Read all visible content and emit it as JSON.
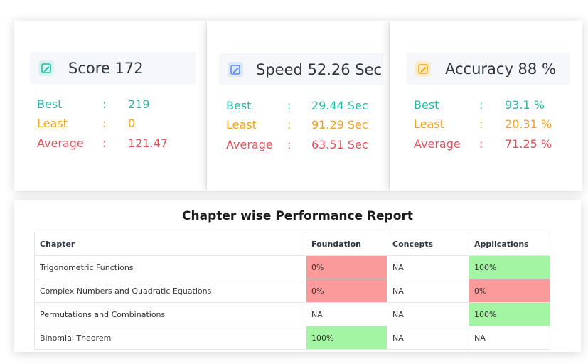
{
  "cards": [
    {
      "title": "Score 172",
      "icon": "edit-icon",
      "icon_color": "#26bba6",
      "best_label": "Best",
      "best_value": "219",
      "least_label": "Least",
      "least_value": "0",
      "average_label": "Average",
      "average_value": "121.47",
      "separator": ":"
    },
    {
      "title": "Speed 52.26 Sec",
      "icon": "edit-icon",
      "icon_color": "#5b8def",
      "best_label": "Best",
      "best_value": "29.44 Sec",
      "least_label": "Least",
      "least_value": "91.29 Sec",
      "average_label": "Average",
      "average_value": "63.51 Sec",
      "separator": ":"
    },
    {
      "title": "Accuracy 88 %",
      "icon": "edit-icon",
      "icon_color": "#f4a21c",
      "best_label": "Best",
      "best_value": "93.1 %",
      "least_label": "Least",
      "least_value": "20.31 %",
      "average_label": "Average",
      "average_value": "71.25 %",
      "separator": ":"
    }
  ],
  "colors": {
    "best": "#26bba6",
    "least": "#f4a21c",
    "average": "#e8505b",
    "cell_red": "#fb9a9a",
    "cell_green": "#a3f5a3"
  },
  "report": {
    "title": "Chapter wise Performance Report",
    "headers": [
      "Chapter",
      "Foundation",
      "Concepts",
      "Applications"
    ],
    "rows": [
      [
        "Trigonometric Functions",
        "0%",
        "NA",
        "100%"
      ],
      [
        "Complex Numbers and Quadratic Equations",
        "0%",
        "NA",
        "0%"
      ],
      [
        "Permutations and Combinations",
        "NA",
        "NA",
        "100%"
      ],
      [
        "Binomial Theorem",
        "100%",
        "NA",
        "NA"
      ]
    ]
  }
}
